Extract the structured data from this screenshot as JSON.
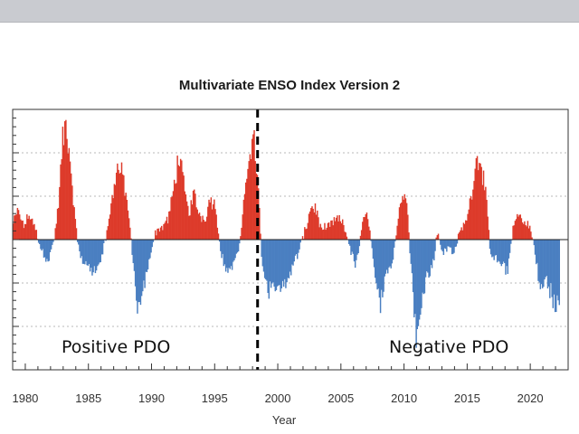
{
  "chart_data": {
    "type": "bar",
    "title": "Multivariate ENSO Index Version 2",
    "xlabel": "Year",
    "ylabel": "",
    "xlim": [
      1979,
      2023
    ],
    "ylim": [
      -3,
      3
    ],
    "x_ticks": [
      1980,
      1985,
      1990,
      1995,
      2000,
      2005,
      2010,
      2015,
      2020
    ],
    "grid": "horizontal dotted",
    "colors": {
      "positive": "#dd3b2b",
      "negative": "#4a7fc1",
      "divider": "#000000"
    },
    "divider_year": 1998.4,
    "annotations": [
      {
        "text": "Positive PDO",
        "region": "left"
      },
      {
        "text": "Negative PDO",
        "region": "right"
      }
    ],
    "control_points": [
      [
        1979.0,
        0.4
      ],
      [
        1979.4,
        0.7
      ],
      [
        1979.8,
        0.3
      ],
      [
        1980.3,
        0.6
      ],
      [
        1980.8,
        0.2
      ],
      [
        1981.3,
        -0.3
      ],
      [
        1981.8,
        -0.5
      ],
      [
        1982.3,
        0.1
      ],
      [
        1982.6,
        0.9
      ],
      [
        1982.9,
        2.3
      ],
      [
        1983.2,
        2.8
      ],
      [
        1983.6,
        1.6
      ],
      [
        1983.9,
        0.4
      ],
      [
        1984.3,
        -0.4
      ],
      [
        1984.8,
        -0.6
      ],
      [
        1985.4,
        -0.8
      ],
      [
        1985.9,
        -0.5
      ],
      [
        1986.4,
        0.1
      ],
      [
        1986.8,
        0.9
      ],
      [
        1987.2,
        1.7
      ],
      [
        1987.7,
        1.5
      ],
      [
        1988.1,
        0.7
      ],
      [
        1988.5,
        -0.6
      ],
      [
        1988.9,
        -1.8
      ],
      [
        1989.3,
        -1.2
      ],
      [
        1989.8,
        -0.4
      ],
      [
        1990.3,
        0.2
      ],
      [
        1990.8,
        0.3
      ],
      [
        1991.3,
        0.5
      ],
      [
        1991.7,
        1.2
      ],
      [
        1992.1,
        2.0
      ],
      [
        1992.5,
        1.3
      ],
      [
        1992.9,
        0.6
      ],
      [
        1993.3,
        1.1
      ],
      [
        1993.7,
        0.6
      ],
      [
        1994.2,
        0.5
      ],
      [
        1994.6,
        1.0
      ],
      [
        1995.0,
        0.8
      ],
      [
        1995.4,
        -0.2
      ],
      [
        1995.9,
        -0.8
      ],
      [
        1996.4,
        -0.6
      ],
      [
        1996.9,
        -0.2
      ],
      [
        1997.3,
        0.9
      ],
      [
        1997.7,
        2.2
      ],
      [
        1998.1,
        2.3
      ],
      [
        1998.4,
        1.2
      ],
      [
        1998.7,
        -0.5
      ],
      [
        1999.2,
        -1.2
      ],
      [
        1999.7,
        -1.0
      ],
      [
        2000.2,
        -1.3
      ],
      [
        2000.7,
        -0.9
      ],
      [
        2001.2,
        -0.6
      ],
      [
        2001.7,
        -0.2
      ],
      [
        2002.2,
        0.3
      ],
      [
        2002.6,
        0.8
      ],
      [
        2003.0,
        0.7
      ],
      [
        2003.4,
        0.2
      ],
      [
        2003.8,
        0.3
      ],
      [
        2004.3,
        0.4
      ],
      [
        2004.8,
        0.5
      ],
      [
        2005.2,
        0.3
      ],
      [
        2005.7,
        -0.2
      ],
      [
        2006.1,
        -0.6
      ],
      [
        2006.6,
        0.2
      ],
      [
        2006.9,
        0.8
      ],
      [
        2007.3,
        0.1
      ],
      [
        2007.7,
        -0.9
      ],
      [
        2008.1,
        -1.5
      ],
      [
        2008.6,
        -0.8
      ],
      [
        2009.0,
        -0.6
      ],
      [
        2009.4,
        0.3
      ],
      [
        2009.8,
        1.1
      ],
      [
        2010.1,
        1.2
      ],
      [
        2010.5,
        -0.6
      ],
      [
        2010.9,
        -2.3
      ],
      [
        2011.3,
        -1.6
      ],
      [
        2011.7,
        -0.9
      ],
      [
        2012.2,
        -0.7
      ],
      [
        2012.6,
        0.2
      ],
      [
        2013.0,
        -0.3
      ],
      [
        2013.5,
        -0.2
      ],
      [
        2013.9,
        -0.3
      ],
      [
        2014.4,
        0.2
      ],
      [
        2014.8,
        0.4
      ],
      [
        2015.2,
        0.9
      ],
      [
        2015.6,
        1.8
      ],
      [
        2016.0,
        2.0
      ],
      [
        2016.4,
        1.1
      ],
      [
        2016.8,
        -0.3
      ],
      [
        2017.2,
        -0.4
      ],
      [
        2017.7,
        -0.6
      ],
      [
        2018.1,
        -0.8
      ],
      [
        2018.6,
        0.3
      ],
      [
        2019.0,
        0.6
      ],
      [
        2019.5,
        0.4
      ],
      [
        2019.9,
        0.3
      ],
      [
        2020.3,
        -0.2
      ],
      [
        2020.7,
        -1.2
      ],
      [
        2021.2,
        -0.9
      ],
      [
        2021.7,
        -1.4
      ],
      [
        2022.0,
        -1.6
      ],
      [
        2022.3,
        -1.4
      ]
    ]
  }
}
